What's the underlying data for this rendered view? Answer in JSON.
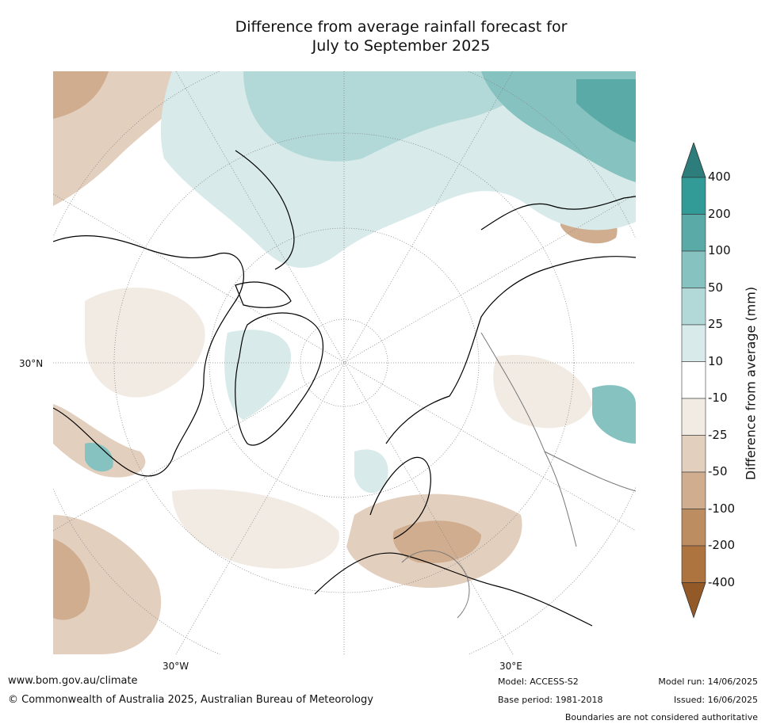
{
  "title": "Difference from average rainfall forecast for\nJuly to September 2025",
  "map": {
    "lat_label": "30°N",
    "lon_labels": [
      "30°W",
      "30°E"
    ]
  },
  "colorbar": {
    "title": "Difference from average (mm)",
    "ticks": [
      "400",
      "200",
      "100",
      "50",
      "25",
      "10",
      "-10",
      "-25",
      "-50",
      "-100",
      "-200",
      "-400"
    ],
    "colors": [
      "#2c7d7b",
      "#339b97",
      "#5aaba8",
      "#85c2c0",
      "#b2d9d8",
      "#d8ebea",
      "#ffffff",
      "#f1ebe4",
      "#e3cfbe",
      "#cfad8e",
      "#bd8d62",
      "#ae7440",
      "#935a27"
    ]
  },
  "footer": {
    "url": "www.bom.gov.au/climate",
    "copyright": "© Commonwealth of Australia 2025, Australian Bureau of Meteorology",
    "model": "Model: ACCESS-S2",
    "base_period": "Base period: 1981-2018",
    "model_run": "Model run: 14/06/2025",
    "issued": "Issued: 16/06/2025",
    "disclaimer": "Boundaries are not considered authoritative"
  }
}
